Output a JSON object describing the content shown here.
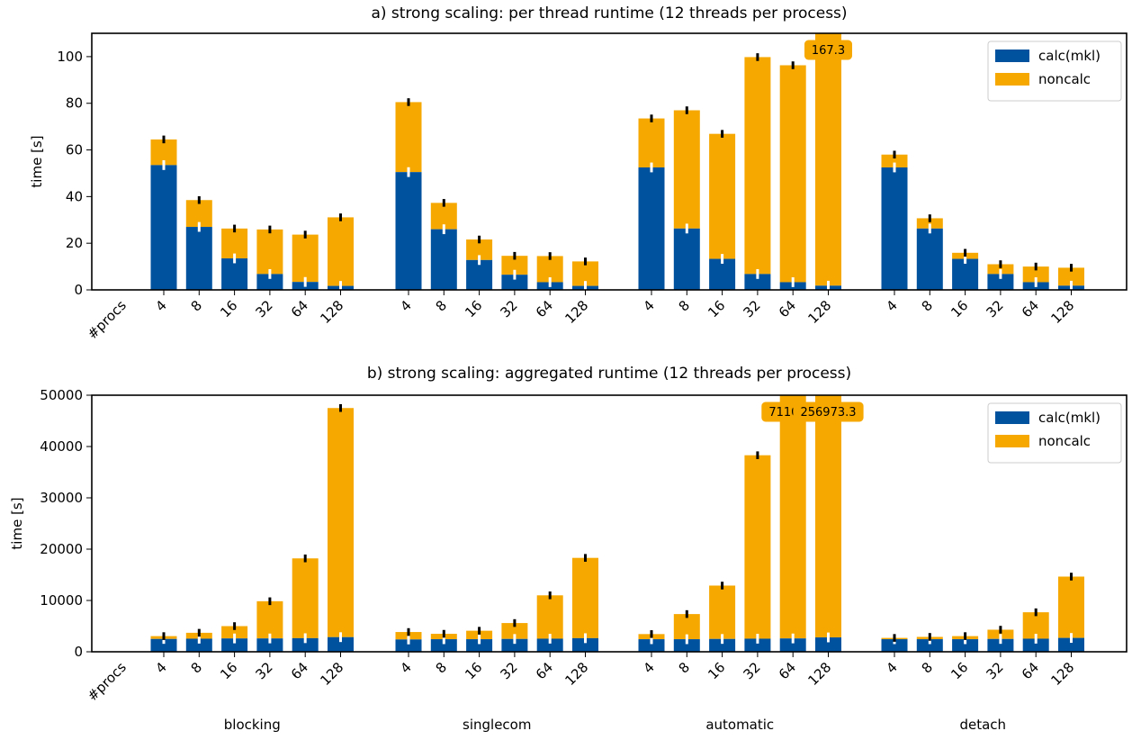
{
  "colors": {
    "calc": "#00529f",
    "noncalc": "#f6a800",
    "error": "#000000",
    "error_calc": "#ffffff"
  },
  "procs_label": "#procs",
  "group_labels": [
    "blocking",
    "singlecom",
    "automatic",
    "detach"
  ],
  "chart_data": [
    {
      "type": "bar",
      "stacked": true,
      "title": "a) strong scaling: per thread runtime (12 threads per process)",
      "ylabel": "time [s]",
      "xlabel": "#procs",
      "ylim": [
        0,
        110
      ],
      "yticks": [
        0,
        20,
        40,
        60,
        80,
        100
      ],
      "groups": [
        "blocking",
        "singlecom",
        "automatic",
        "detach"
      ],
      "categories": [
        "4",
        "8",
        "16",
        "32",
        "64",
        "128"
      ],
      "legend": {
        "position": "top-right",
        "entries": [
          "calc(mkl)",
          "noncalc"
        ]
      },
      "series": [
        {
          "name": "calc(mkl)",
          "values": [
            [
              53.5,
              27.0,
              13.5,
              6.8,
              3.4,
              1.7
            ],
            [
              50.5,
              26.0,
              12.8,
              6.5,
              3.3,
              1.7
            ],
            [
              52.5,
              26.3,
              13.3,
              6.8,
              3.3,
              1.8
            ],
            [
              52.5,
              26.3,
              13.3,
              6.8,
              3.3,
              1.8
            ]
          ]
        },
        {
          "name": "noncalc",
          "values": [
            [
              11.0,
              11.5,
              12.8,
              19.1,
              20.3,
              29.4
            ],
            [
              30.0,
              11.3,
              8.8,
              8.1,
              11.2,
              10.5
            ],
            [
              21.0,
              50.7,
              53.6,
              93.0,
              93.0,
              165.5
            ],
            [
              5.5,
              4.4,
              2.6,
              4.2,
              6.7,
              7.7
            ]
          ]
        }
      ],
      "totals": [
        [
          64.5,
          38.5,
          26.3,
          25.9,
          23.7,
          31.1
        ],
        [
          80.5,
          37.3,
          21.6,
          14.6,
          14.5,
          12.2
        ],
        [
          73.5,
          77.0,
          66.9,
          99.8,
          96.3,
          167.3
        ],
        [
          58.0,
          30.7,
          15.9,
          11.0,
          10.0,
          9.5
        ]
      ],
      "annotations": [
        {
          "group": 2,
          "index": 5,
          "text": "167.3"
        }
      ]
    },
    {
      "type": "bar",
      "stacked": true,
      "title": "b) strong scaling: aggregated runtime (12 threads per process)",
      "ylabel": "time [s]",
      "xlabel": "#procs",
      "ylim": [
        0,
        50000
      ],
      "yticks": [
        0,
        10000,
        20000,
        30000,
        40000,
        50000
      ],
      "groups": [
        "blocking",
        "singlecom",
        "automatic",
        "detach"
      ],
      "categories": [
        "4",
        "8",
        "16",
        "32",
        "64",
        "128"
      ],
      "legend": {
        "position": "top-right",
        "entries": [
          "calc(mkl)",
          "noncalc"
        ]
      },
      "series": [
        {
          "name": "calc(mkl)",
          "values": [
            [
              2500,
              2550,
              2600,
              2600,
              2650,
              2850
            ],
            [
              2400,
              2450,
              2450,
              2500,
              2550,
              2650
            ],
            [
              2450,
              2450,
              2500,
              2550,
              2600,
              2800
            ],
            [
              2450,
              2450,
              2450,
              2500,
              2550,
              2700
            ]
          ]
        },
        {
          "name": "noncalc",
          "values": [
            [
              550,
              1150,
              2400,
              7250,
              15550,
              44650
            ],
            [
              1450,
              1050,
              1650,
              3100,
              8450,
              15650
            ],
            [
              1000,
              4900,
              10400,
              35750,
              68503.6,
              254173.3
            ],
            [
              250,
              450,
              600,
              1800,
              5150,
              11950
            ]
          ]
        }
      ],
      "totals": [
        [
          3050,
          3700,
          5000,
          9850,
          18200,
          47500
        ],
        [
          3850,
          3500,
          4100,
          5600,
          11000,
          18300
        ],
        [
          3450,
          7350,
          12900,
          38300,
          71103.6,
          256973.3
        ],
        [
          2700,
          2900,
          3050,
          4300,
          7700,
          14650
        ]
      ],
      "annotations": [
        {
          "group": 2,
          "index": 4,
          "text": "71103.6"
        },
        {
          "group": 2,
          "index": 5,
          "text": "256973.3"
        }
      ]
    }
  ]
}
